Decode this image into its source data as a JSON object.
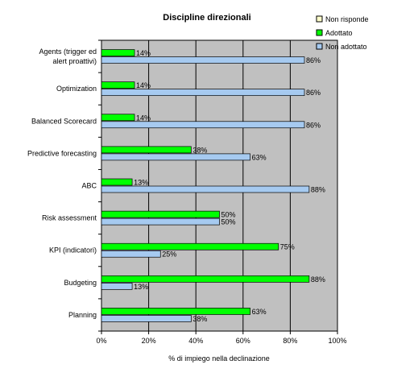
{
  "chart_data": {
    "type": "bar",
    "orientation": "horizontal",
    "title": "Discipline direzionali",
    "xlabel": "% di impiego nella declinazione",
    "ylabel": "",
    "xlim": [
      0,
      100
    ],
    "x_ticks": [
      "0%",
      "20%",
      "40%",
      "60%",
      "80%",
      "100%"
    ],
    "categories": [
      [
        "Agents (trigger ed",
        "alert proattivi)"
      ],
      [
        "Optimization"
      ],
      [
        "Balanced Scorecard"
      ],
      [
        "Predictive forecasting"
      ],
      [
        "ABC"
      ],
      [
        "Risk assessment"
      ],
      [
        "KPI (indicatori)"
      ],
      [
        "Budgeting"
      ],
      [
        "Planning"
      ]
    ],
    "series": [
      {
        "name": "Non risponde",
        "color": "#ffffcc",
        "values": [
          0,
          0,
          0,
          0,
          0,
          0,
          0,
          0,
          0
        ]
      },
      {
        "name": "Adottato",
        "color": "#00ff00",
        "values": [
          14,
          14,
          14,
          38,
          13,
          50,
          75,
          88,
          63
        ],
        "labels": [
          "14%",
          "14%",
          "14%",
          "38%",
          "13%",
          "50%",
          "75%",
          "88%",
          "63%"
        ]
      },
      {
        "name": "Non adottato",
        "color": "#a6caf0",
        "values": [
          86,
          86,
          86,
          63,
          88,
          50,
          25,
          13,
          38
        ],
        "labels": [
          "86%",
          "86%",
          "86%",
          "63%",
          "88%",
          "50%",
          "25%",
          "13%",
          "38%"
        ]
      }
    ],
    "plot_background": "#c0c0c0",
    "grid": "vertical",
    "legend_position": "top-right"
  }
}
